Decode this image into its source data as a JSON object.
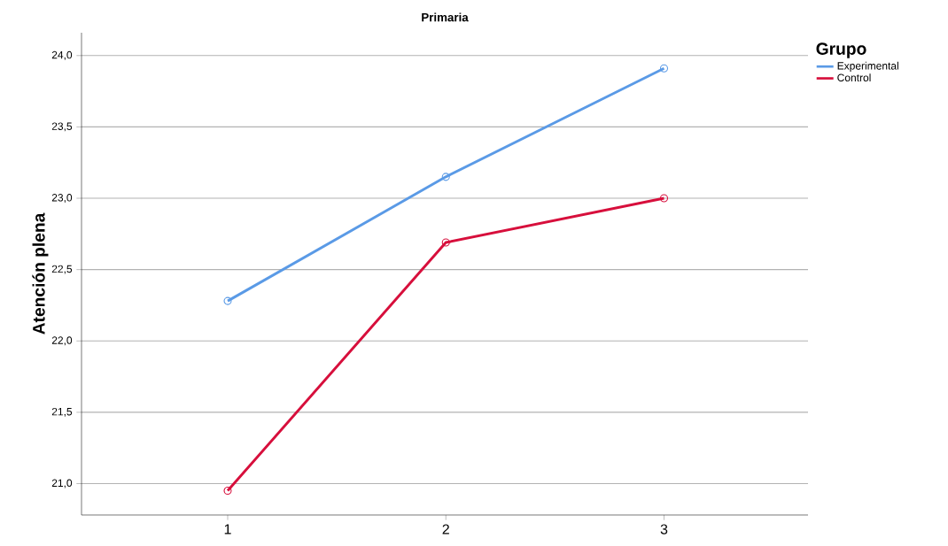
{
  "chart_data": {
    "type": "line",
    "title": "Primaria",
    "ylabel": "Atención plena",
    "legend_title": "Grupo",
    "categories": [
      "1",
      "2",
      "3"
    ],
    "series": [
      {
        "name": "Experimental",
        "color": "#5a9ae6",
        "values": [
          22.28,
          23.15,
          23.91
        ]
      },
      {
        "name": "Control",
        "color": "#d70f3c",
        "values": [
          20.95,
          22.69,
          23.0
        ]
      }
    ],
    "ylim": [
      20.78,
      24.16
    ],
    "yticks": [
      {
        "value": 21,
        "label": "21,0"
      },
      {
        "value": 21.5,
        "label": "21,5"
      },
      {
        "value": 22,
        "label": "22,0"
      },
      {
        "value": 22.5,
        "label": "22,5"
      },
      {
        "value": 23,
        "label": "23,0"
      },
      {
        "value": 23.5,
        "label": "23,5"
      },
      {
        "value": 24,
        "label": "24,0"
      }
    ],
    "grid": "y",
    "legend": "top right",
    "marker": "circle",
    "line_style": "solid"
  }
}
